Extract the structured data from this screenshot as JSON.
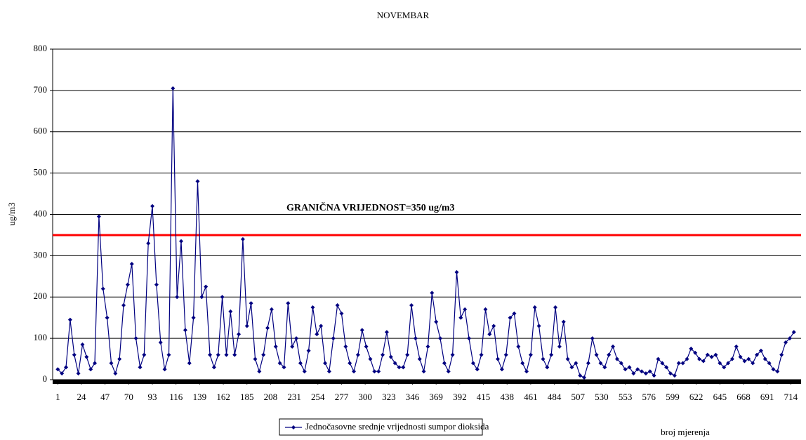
{
  "chart_data": {
    "type": "line",
    "title": "NOVEMBAR",
    "y_label": "ug/m3",
    "x_label": "broj mjerenja",
    "xlim": [
      -4,
      724
    ],
    "ylim": [
      0,
      800
    ],
    "yticks": [
      0,
      100,
      200,
      300,
      400,
      500,
      600,
      700,
      800
    ],
    "xticks": [
      1,
      24,
      47,
      70,
      93,
      116,
      139,
      162,
      185,
      208,
      231,
      254,
      277,
      300,
      323,
      346,
      369,
      392,
      415,
      438,
      461,
      484,
      507,
      530,
      553,
      576,
      599,
      622,
      645,
      668,
      691,
      714
    ],
    "grid": true,
    "legend": "bottom",
    "reference_line": {
      "value": 350,
      "label": "GRANIČNA VRIJEDNOST=350 ug/m3",
      "color": "#ff0000"
    },
    "x": [
      1,
      5,
      9,
      13,
      17,
      21,
      25,
      29,
      33,
      37,
      41,
      45,
      49,
      53,
      57,
      61,
      65,
      69,
      73,
      77,
      81,
      85,
      89,
      93,
      97,
      101,
      105,
      109,
      113,
      117,
      121,
      125,
      129,
      133,
      137,
      141,
      145,
      149,
      153,
      157,
      161,
      165,
      169,
      173,
      177,
      181,
      185,
      189,
      193,
      197,
      201,
      205,
      209,
      213,
      217,
      221,
      225,
      229,
      233,
      237,
      241,
      245,
      249,
      253,
      257,
      261,
      265,
      269,
      273,
      277,
      281,
      285,
      289,
      293,
      297,
      301,
      305,
      309,
      313,
      317,
      321,
      325,
      329,
      333,
      337,
      341,
      345,
      349,
      353,
      357,
      361,
      365,
      369,
      373,
      377,
      381,
      385,
      389,
      393,
      397,
      401,
      405,
      409,
      413,
      417,
      421,
      425,
      429,
      433,
      437,
      441,
      445,
      449,
      453,
      457,
      461,
      465,
      469,
      473,
      477,
      481,
      485,
      489,
      493,
      497,
      501,
      505,
      509,
      513,
      517,
      521,
      525,
      529,
      533,
      537,
      541,
      545,
      549,
      553,
      557,
      561,
      565,
      569,
      573,
      577,
      581,
      585,
      589,
      593,
      597,
      601,
      605,
      609,
      613,
      617,
      621,
      625,
      629,
      633,
      637,
      641,
      645,
      649,
      653,
      657,
      661,
      665,
      669,
      673,
      677,
      681,
      685,
      689,
      693,
      697,
      701,
      705,
      709,
      713,
      717
    ],
    "series": [
      {
        "name": "Jednočasovne srednje vrijednosti sumpor dioksida",
        "color": "#000080",
        "values": [
          25,
          15,
          30,
          145,
          60,
          15,
          85,
          55,
          25,
          40,
          395,
          220,
          150,
          40,
          15,
          50,
          180,
          230,
          280,
          100,
          30,
          60,
          330,
          420,
          230,
          90,
          25,
          60,
          705,
          200,
          335,
          120,
          40,
          150,
          480,
          200,
          225,
          60,
          30,
          60,
          200,
          60,
          165,
          60,
          110,
          340,
          130,
          185,
          50,
          20,
          60,
          125,
          170,
          80,
          40,
          30,
          185,
          80,
          100,
          40,
          20,
          70,
          175,
          110,
          130,
          40,
          20,
          100,
          180,
          160,
          80,
          40,
          20,
          60,
          120,
          80,
          50,
          20,
          20,
          60,
          115,
          55,
          40,
          30,
          30,
          60,
          180,
          100,
          50,
          20,
          80,
          210,
          140,
          100,
          40,
          20,
          60,
          260,
          150,
          170,
          100,
          40,
          25,
          60,
          170,
          110,
          130,
          50,
          25,
          60,
          150,
          160,
          80,
          40,
          20,
          60,
          175,
          130,
          50,
          30,
          60,
          175,
          80,
          140,
          50,
          30,
          40,
          10,
          5,
          40,
          100,
          60,
          40,
          30,
          60,
          80,
          50,
          40,
          25,
          30,
          15,
          25,
          20,
          15,
          20,
          10,
          50,
          40,
          30,
          15,
          10,
          40,
          40,
          50,
          75,
          65,
          50,
          45,
          60,
          55,
          60,
          40,
          30,
          40,
          50,
          80,
          55,
          45,
          50,
          40,
          60,
          70,
          50,
          40,
          25,
          20,
          60,
          90,
          100,
          115
        ]
      }
    ]
  }
}
